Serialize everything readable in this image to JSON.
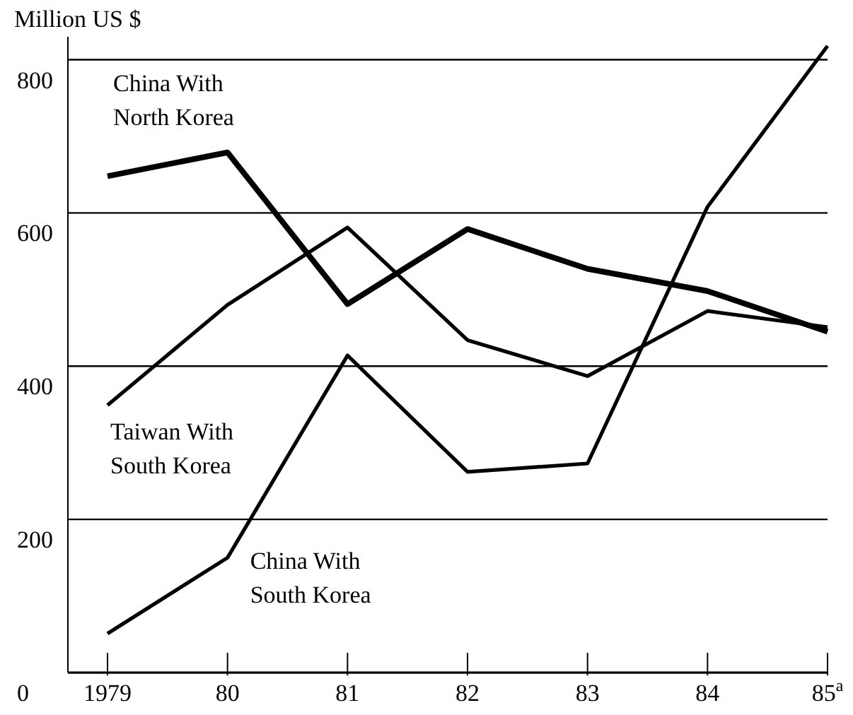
{
  "chart_data": {
    "type": "line",
    "ylabel": "Million US $",
    "categories": [
      "1979",
      "80",
      "81",
      "82",
      "83",
      "84",
      "85$^{a}$"
    ],
    "series": [
      {
        "name": "China With North Korea",
        "color": "#000000",
        "values": [
          648,
          679,
          481,
          579,
          527,
          498,
          445
        ]
      },
      {
        "name": "Taiwan With South Korea",
        "color": "#000000",
        "values": [
          349,
          480,
          581,
          434,
          387,
          472,
          451
        ]
      },
      {
        "name": "China With South Korea",
        "color": "#000000",
        "values": [
          51,
          150,
          414,
          262,
          273,
          608,
          818
        ]
      }
    ],
    "ylim": [
      0,
      830
    ],
    "yticks": [
      0,
      200,
      400,
      600,
      800
    ],
    "grid": "y",
    "legend": false,
    "marker": "none",
    "line_style": "solid"
  }
}
